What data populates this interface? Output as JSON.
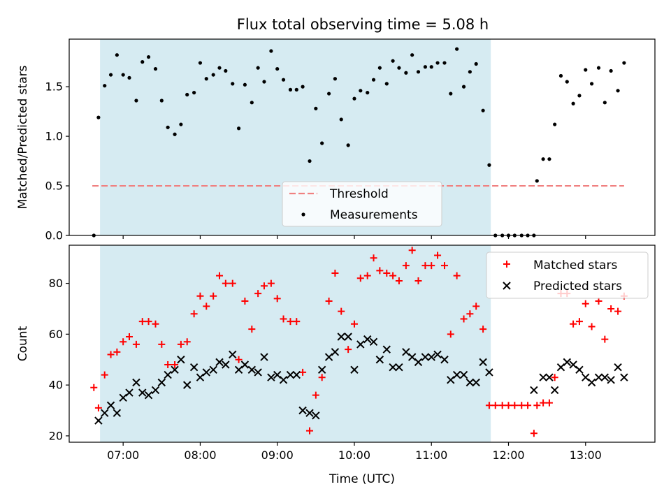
{
  "chart_data": [
    {
      "type": "scatter",
      "title": "Flux total observing time = 5.08 h",
      "xlabel": "",
      "ylabel": "Matched/Predicted stars",
      "xlim": [
        6.3,
        13.9
      ],
      "ylim": [
        0.0,
        1.98
      ],
      "yticks": [
        0.0,
        0.5,
        1.0,
        1.5
      ],
      "ytick_labels": [
        "0.0",
        "0.5",
        "1.0",
        "1.5"
      ],
      "shaded_interval": [
        6.7,
        11.77
      ],
      "shade_color": "#add8e6",
      "legend_position": "bottom-center",
      "threshold": {
        "name": "Threshold",
        "value": 0.5,
        "x_range": [
          6.6,
          13.5
        ],
        "color": "#f08080"
      },
      "series": [
        {
          "name": "Measurements",
          "color": "#000000",
          "points": [
            [
              6.62,
              0.0
            ],
            [
              6.68,
              1.19
            ],
            [
              6.76,
              1.51
            ],
            [
              6.84,
              1.62
            ],
            [
              6.92,
              1.82
            ],
            [
              7.0,
              1.62
            ],
            [
              7.08,
              1.59
            ],
            [
              7.17,
              1.36
            ],
            [
              7.25,
              1.75
            ],
            [
              7.33,
              1.8
            ],
            [
              7.42,
              1.68
            ],
            [
              7.5,
              1.36
            ],
            [
              7.58,
              1.09
            ],
            [
              7.67,
              1.02
            ],
            [
              7.75,
              1.12
            ],
            [
              7.83,
              1.42
            ],
            [
              7.92,
              1.44
            ],
            [
              8.0,
              1.74
            ],
            [
              8.08,
              1.58
            ],
            [
              8.17,
              1.62
            ],
            [
              8.25,
              1.69
            ],
            [
              8.33,
              1.66
            ],
            [
              8.42,
              1.53
            ],
            [
              8.5,
              1.08
            ],
            [
              8.58,
              1.52
            ],
            [
              8.67,
              1.34
            ],
            [
              8.75,
              1.69
            ],
            [
              8.83,
              1.55
            ],
            [
              8.92,
              1.86
            ],
            [
              9.0,
              1.68
            ],
            [
              9.08,
              1.57
            ],
            [
              9.17,
              1.47
            ],
            [
              9.25,
              1.47
            ],
            [
              9.33,
              1.5
            ],
            [
              9.42,
              0.75
            ],
            [
              9.5,
              1.28
            ],
            [
              9.58,
              0.93
            ],
            [
              9.67,
              1.43
            ],
            [
              9.75,
              1.58
            ],
            [
              9.83,
              1.17
            ],
            [
              9.92,
              0.91
            ],
            [
              10.0,
              1.38
            ],
            [
              10.08,
              1.46
            ],
            [
              10.17,
              1.44
            ],
            [
              10.25,
              1.57
            ],
            [
              10.33,
              1.69
            ],
            [
              10.42,
              1.53
            ],
            [
              10.5,
              1.76
            ],
            [
              10.58,
              1.69
            ],
            [
              10.67,
              1.64
            ],
            [
              10.75,
              1.82
            ],
            [
              10.83,
              1.65
            ],
            [
              10.92,
              1.7
            ],
            [
              11.0,
              1.7
            ],
            [
              11.08,
              1.74
            ],
            [
              11.17,
              1.74
            ],
            [
              11.25,
              1.43
            ],
            [
              11.33,
              1.88
            ],
            [
              11.42,
              1.5
            ],
            [
              11.5,
              1.65
            ],
            [
              11.58,
              1.73
            ],
            [
              11.67,
              1.26
            ],
            [
              11.75,
              0.71
            ],
            [
              11.83,
              0.0
            ],
            [
              11.92,
              0.0
            ],
            [
              12.0,
              0.0
            ],
            [
              12.08,
              0.0
            ],
            [
              12.17,
              0.0
            ],
            [
              12.25,
              0.0
            ],
            [
              12.33,
              0.0
            ],
            [
              12.37,
              0.55
            ],
            [
              12.45,
              0.77
            ],
            [
              12.53,
              0.77
            ],
            [
              12.6,
              1.12
            ],
            [
              12.68,
              1.61
            ],
            [
              12.76,
              1.55
            ],
            [
              12.84,
              1.33
            ],
            [
              12.92,
              1.41
            ],
            [
              13.0,
              1.67
            ],
            [
              13.08,
              1.53
            ],
            [
              13.17,
              1.69
            ],
            [
              13.25,
              1.34
            ],
            [
              13.33,
              1.66
            ],
            [
              13.42,
              1.46
            ],
            [
              13.5,
              1.74
            ]
          ]
        }
      ]
    },
    {
      "type": "scatter",
      "title": "",
      "xlabel": "Time (UTC)",
      "ylabel": "Count",
      "xlim": [
        6.3,
        13.9
      ],
      "ylim": [
        17.5,
        95.0
      ],
      "xticks": [
        7,
        8,
        9,
        10,
        11,
        12,
        13
      ],
      "xtick_labels": [
        "07:00",
        "08:00",
        "09:00",
        "10:00",
        "11:00",
        "12:00",
        "13:00"
      ],
      "yticks": [
        20,
        40,
        60,
        80
      ],
      "ytick_labels": [
        "20",
        "40",
        "60",
        "80"
      ],
      "shaded_interval": [
        6.7,
        11.77
      ],
      "shade_color": "#add8e6",
      "legend_position": "top-right",
      "series": [
        {
          "name": "Matched stars",
          "color": "#ff0000",
          "marker": "plus",
          "points": [
            [
              6.62,
              39
            ],
            [
              6.68,
              31
            ],
            [
              6.76,
              44
            ],
            [
              6.84,
              52
            ],
            [
              6.92,
              53
            ],
            [
              7.0,
              57
            ],
            [
              7.08,
              59
            ],
            [
              7.17,
              56
            ],
            [
              7.25,
              65
            ],
            [
              7.33,
              65
            ],
            [
              7.42,
              64
            ],
            [
              7.5,
              56
            ],
            [
              7.58,
              48
            ],
            [
              7.67,
              48
            ],
            [
              7.75,
              56
            ],
            [
              7.83,
              57
            ],
            [
              7.92,
              68
            ],
            [
              8.0,
              75
            ],
            [
              8.08,
              71
            ],
            [
              8.17,
              75
            ],
            [
              8.25,
              83
            ],
            [
              8.33,
              80
            ],
            [
              8.42,
              80
            ],
            [
              8.5,
              50
            ],
            [
              8.58,
              73
            ],
            [
              8.67,
              62
            ],
            [
              8.75,
              76
            ],
            [
              8.83,
              79
            ],
            [
              8.92,
              80
            ],
            [
              9.0,
              74
            ],
            [
              9.08,
              66
            ],
            [
              9.17,
              65
            ],
            [
              9.25,
              65
            ],
            [
              9.33,
              45
            ],
            [
              9.42,
              22
            ],
            [
              9.5,
              36
            ],
            [
              9.58,
              43
            ],
            [
              9.67,
              73
            ],
            [
              9.75,
              84
            ],
            [
              9.83,
              69
            ],
            [
              9.92,
              54
            ],
            [
              10.0,
              64
            ],
            [
              10.08,
              82
            ],
            [
              10.17,
              83
            ],
            [
              10.25,
              90
            ],
            [
              10.33,
              85
            ],
            [
              10.42,
              84
            ],
            [
              10.5,
              83
            ],
            [
              10.58,
              81
            ],
            [
              10.67,
              87
            ],
            [
              10.75,
              93
            ],
            [
              10.83,
              81
            ],
            [
              10.92,
              87
            ],
            [
              11.0,
              87
            ],
            [
              11.08,
              91
            ],
            [
              11.17,
              87
            ],
            [
              11.25,
              60
            ],
            [
              11.33,
              83
            ],
            [
              11.42,
              66
            ],
            [
              11.5,
              68
            ],
            [
              11.58,
              71
            ],
            [
              11.67,
              62
            ],
            [
              11.75,
              32
            ],
            [
              11.83,
              32
            ],
            [
              11.92,
              32
            ],
            [
              12.0,
              32
            ],
            [
              12.08,
              32
            ],
            [
              12.17,
              32
            ],
            [
              12.25,
              32
            ],
            [
              12.33,
              21
            ],
            [
              12.37,
              32
            ],
            [
              12.45,
              33
            ],
            [
              12.53,
              33
            ],
            [
              12.6,
              43
            ],
            [
              12.68,
              76
            ],
            [
              12.76,
              76
            ],
            [
              12.84,
              64
            ],
            [
              12.92,
              65
            ],
            [
              13.0,
              72
            ],
            [
              13.08,
              63
            ],
            [
              13.17,
              73
            ],
            [
              13.25,
              58
            ],
            [
              13.33,
              70
            ],
            [
              13.42,
              69
            ],
            [
              13.5,
              75
            ]
          ]
        },
        {
          "name": "Predicted stars",
          "color": "#000000",
          "marker": "x",
          "points": [
            [
              6.68,
              26
            ],
            [
              6.76,
              29
            ],
            [
              6.84,
              32
            ],
            [
              6.92,
              29
            ],
            [
              7.0,
              35
            ],
            [
              7.08,
              37
            ],
            [
              7.17,
              41
            ],
            [
              7.25,
              37
            ],
            [
              7.33,
              36
            ],
            [
              7.42,
              38
            ],
            [
              7.5,
              41
            ],
            [
              7.58,
              44
            ],
            [
              7.67,
              46
            ],
            [
              7.75,
              50
            ],
            [
              7.83,
              40
            ],
            [
              7.92,
              47
            ],
            [
              8.0,
              43
            ],
            [
              8.08,
              45
            ],
            [
              8.17,
              46
            ],
            [
              8.25,
              49
            ],
            [
              8.33,
              48
            ],
            [
              8.42,
              52
            ],
            [
              8.5,
              46
            ],
            [
              8.58,
              48
            ],
            [
              8.67,
              46
            ],
            [
              8.75,
              45
            ],
            [
              8.83,
              51
            ],
            [
              8.92,
              43
            ],
            [
              9.0,
              44
            ],
            [
              9.08,
              42
            ],
            [
              9.17,
              44
            ],
            [
              9.25,
              44
            ],
            [
              9.33,
              30
            ],
            [
              9.42,
              29
            ],
            [
              9.5,
              28
            ],
            [
              9.58,
              46
            ],
            [
              9.67,
              51
            ],
            [
              9.75,
              53
            ],
            [
              9.83,
              59
            ],
            [
              9.92,
              59
            ],
            [
              10.0,
              46
            ],
            [
              10.08,
              56
            ],
            [
              10.17,
              58
            ],
            [
              10.25,
              57
            ],
            [
              10.33,
              50
            ],
            [
              10.42,
              54
            ],
            [
              10.5,
              47
            ],
            [
              10.58,
              47
            ],
            [
              10.67,
              53
            ],
            [
              10.75,
              51
            ],
            [
              10.83,
              49
            ],
            [
              10.92,
              51
            ],
            [
              11.0,
              51
            ],
            [
              11.08,
              52
            ],
            [
              11.17,
              50
            ],
            [
              11.25,
              42
            ],
            [
              11.33,
              44
            ],
            [
              11.42,
              44
            ],
            [
              11.5,
              41
            ],
            [
              11.58,
              41
            ],
            [
              11.67,
              49
            ],
            [
              11.75,
              45
            ],
            [
              12.33,
              38
            ],
            [
              12.45,
              43
            ],
            [
              12.53,
              43
            ],
            [
              12.6,
              38
            ],
            [
              12.68,
              47
            ],
            [
              12.76,
              49
            ],
            [
              12.84,
              48
            ],
            [
              12.92,
              46
            ],
            [
              13.0,
              43
            ],
            [
              13.08,
              41
            ],
            [
              13.17,
              43
            ],
            [
              13.25,
              43
            ],
            [
              13.33,
              42
            ],
            [
              13.42,
              47
            ],
            [
              13.5,
              43
            ]
          ]
        }
      ]
    }
  ]
}
